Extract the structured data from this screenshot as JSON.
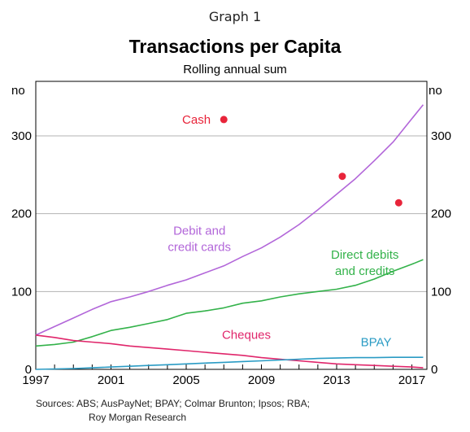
{
  "header": {
    "graph_label": "Graph 1",
    "title": "Transactions per Capita",
    "subtitle": "Rolling annual sum"
  },
  "sources": {
    "line1": "Sources:  ABS; AusPayNet; BPAY; Colmar Brunton; Ipsos; RBA;",
    "line2": "Roy Morgan Research"
  },
  "chart_data": {
    "type": "line",
    "title": "Transactions per Capita",
    "subtitle": "Rolling annual sum",
    "ylabel_left": "no",
    "ylabel_right": "no",
    "xlim": [
      1997,
      2017.8
    ],
    "ylim": [
      0,
      370
    ],
    "x_ticks": [
      "1997",
      "2001",
      "2005",
      "2009",
      "2013",
      "2017"
    ],
    "y_ticks": [
      "0",
      "100",
      "200",
      "300"
    ],
    "grid": "horizontal",
    "colors": {
      "debit_credit": "#b266d9",
      "direct": "#33b24a",
      "cheques": "#e0266b",
      "bpay": "#2a9bc4",
      "cash": "#e8243a"
    },
    "series": [
      {
        "name": "Debit and credit cards",
        "label_lines": [
          "Debit and",
          "credit cards"
        ],
        "color_key": "debit_credit",
        "points": [
          [
            1997,
            44
          ],
          [
            1998,
            55
          ],
          [
            1999,
            66
          ],
          [
            2000,
            77
          ],
          [
            2001,
            87
          ],
          [
            2002,
            93
          ],
          [
            2003,
            100
          ],
          [
            2004,
            108
          ],
          [
            2005,
            115
          ],
          [
            2006,
            124
          ],
          [
            2007,
            133
          ],
          [
            2008,
            145
          ],
          [
            2009,
            156
          ],
          [
            2010,
            170
          ],
          [
            2011,
            186
          ],
          [
            2012,
            205
          ],
          [
            2013,
            225
          ],
          [
            2014,
            245
          ],
          [
            2015,
            268
          ],
          [
            2016,
            292
          ],
          [
            2017,
            322
          ],
          [
            2017.6,
            340
          ]
        ]
      },
      {
        "name": "Direct debits and credits",
        "label_lines": [
          "Direct debits",
          "and credits"
        ],
        "color_key": "direct",
        "points": [
          [
            1997,
            30
          ],
          [
            1998,
            32
          ],
          [
            1999,
            35
          ],
          [
            2000,
            42
          ],
          [
            2001,
            50
          ],
          [
            2002,
            54
          ],
          [
            2003,
            59
          ],
          [
            2004,
            64
          ],
          [
            2005,
            72
          ],
          [
            2006,
            75
          ],
          [
            2007,
            79
          ],
          [
            2008,
            85
          ],
          [
            2009,
            88
          ],
          [
            2010,
            93
          ],
          [
            2011,
            97
          ],
          [
            2012,
            100
          ],
          [
            2013,
            103
          ],
          [
            2014,
            108
          ],
          [
            2015,
            116
          ],
          [
            2016,
            126
          ],
          [
            2017,
            135
          ],
          [
            2017.6,
            141
          ]
        ]
      },
      {
        "name": "Cheques",
        "label_lines": [
          "Cheques"
        ],
        "color_key": "cheques",
        "points": [
          [
            1997,
            44
          ],
          [
            1998,
            41
          ],
          [
            1999,
            37
          ],
          [
            2000,
            35
          ],
          [
            2001,
            33
          ],
          [
            2002,
            30
          ],
          [
            2003,
            28
          ],
          [
            2004,
            26
          ],
          [
            2005,
            24
          ],
          [
            2006,
            22
          ],
          [
            2007,
            20
          ],
          [
            2008,
            18
          ],
          [
            2009,
            15
          ],
          [
            2010,
            13
          ],
          [
            2011,
            11
          ],
          [
            2012,
            9
          ],
          [
            2013,
            7
          ],
          [
            2014,
            6
          ],
          [
            2015,
            5
          ],
          [
            2016,
            4
          ],
          [
            2017,
            3
          ],
          [
            2017.6,
            2
          ]
        ]
      },
      {
        "name": "BPAY",
        "label_lines": [
          "BPAY"
        ],
        "color_key": "bpay",
        "points": [
          [
            1997,
            0
          ],
          [
            1998,
            0.5
          ],
          [
            1999,
            1
          ],
          [
            2000,
            2
          ],
          [
            2001,
            3
          ],
          [
            2002,
            4
          ],
          [
            2003,
            5
          ],
          [
            2004,
            6
          ],
          [
            2005,
            7
          ],
          [
            2006,
            8
          ],
          [
            2007,
            9
          ],
          [
            2008,
            10
          ],
          [
            2009,
            11
          ],
          [
            2010,
            12
          ],
          [
            2011,
            13
          ],
          [
            2012,
            14
          ],
          [
            2013,
            14.5
          ],
          [
            2014,
            15
          ],
          [
            2015,
            15
          ],
          [
            2016,
            15.5
          ],
          [
            2017,
            15.5
          ],
          [
            2017.6,
            15.5
          ]
        ]
      }
    ],
    "points_series": {
      "name": "Cash",
      "label_lines": [
        "Cash"
      ],
      "color_key": "cash",
      "points": [
        [
          2007,
          321
        ],
        [
          2013.3,
          248
        ],
        [
          2016.3,
          214
        ]
      ]
    }
  }
}
